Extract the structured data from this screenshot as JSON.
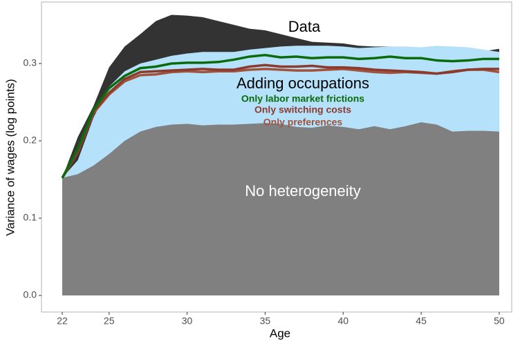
{
  "chart_data": {
    "type": "area",
    "xlabel": "Age",
    "ylabel": "Variance of wages (log points)",
    "x": [
      22,
      23,
      24,
      25,
      26,
      27,
      28,
      29,
      30,
      31,
      32,
      33,
      34,
      35,
      36,
      37,
      38,
      39,
      40,
      41,
      42,
      43,
      44,
      45,
      46,
      47,
      48,
      49,
      50
    ],
    "xlim": [
      20.67,
      50.8
    ],
    "ylim": [
      -0.0214,
      0.3795
    ],
    "xticks": [
      22,
      25,
      30,
      35,
      40,
      45,
      50
    ],
    "yticks": [
      {
        "value": 0,
        "label": "0.0"
      },
      0.1,
      0.2,
      0.3
    ],
    "series": [
      {
        "name": "Data",
        "kind": "area",
        "color": "#333333",
        "label_color": "#000000",
        "values": [
          0.152,
          0.205,
          0.245,
          0.295,
          0.322,
          0.338,
          0.355,
          0.363,
          0.362,
          0.36,
          0.355,
          0.35,
          0.345,
          0.343,
          0.338,
          0.333,
          0.328,
          0.327,
          0.326,
          0.323,
          0.322,
          0.322,
          0.321,
          0.321,
          0.32,
          0.319,
          0.318,
          0.316,
          0.319
        ]
      },
      {
        "name": "Adding occupations",
        "kind": "area",
        "color": "#b5e1fb",
        "label_color": "#000000",
        "values": [
          0.152,
          0.175,
          0.23,
          0.27,
          0.29,
          0.3,
          0.305,
          0.31,
          0.313,
          0.315,
          0.315,
          0.315,
          0.318,
          0.32,
          0.322,
          0.323,
          0.323,
          0.323,
          0.322,
          0.32,
          0.321,
          0.322,
          0.322,
          0.321,
          0.323,
          0.322,
          0.321,
          0.318,
          0.315
        ]
      },
      {
        "name": "No heterogeneity",
        "kind": "area",
        "color": "#808080",
        "label_color": "#ffffff",
        "values": [
          0.152,
          0.157,
          0.168,
          0.183,
          0.2,
          0.212,
          0.218,
          0.221,
          0.222,
          0.22,
          0.221,
          0.221,
          0.222,
          0.223,
          0.222,
          0.218,
          0.217,
          0.22,
          0.218,
          0.215,
          0.219,
          0.215,
          0.219,
          0.224,
          0.221,
          0.212,
          0.213,
          0.213,
          0.212
        ]
      },
      {
        "name": "Only preferences",
        "kind": "line",
        "color": "#a0523a",
        "label_color": "#a0523a",
        "values": [
          0.152,
          0.185,
          0.236,
          0.26,
          0.277,
          0.285,
          0.286,
          0.289,
          0.29,
          0.289,
          0.29,
          0.29,
          0.292,
          0.293,
          0.292,
          0.291,
          0.291,
          0.292,
          0.293,
          0.291,
          0.289,
          0.288,
          0.289,
          0.288,
          0.287,
          0.29,
          0.292,
          0.292,
          0.289
        ]
      },
      {
        "name": "Only switching costs",
        "kind": "line",
        "color": "#8b3a2e",
        "label_color": "#8b3a2e",
        "values": [
          0.152,
          0.185,
          0.238,
          0.262,
          0.28,
          0.289,
          0.29,
          0.291,
          0.292,
          0.293,
          0.292,
          0.292,
          0.296,
          0.298,
          0.296,
          0.296,
          0.297,
          0.295,
          0.295,
          0.294,
          0.292,
          0.291,
          0.29,
          0.289,
          0.287,
          0.289,
          0.292,
          0.293,
          0.293
        ]
      },
      {
        "name": "Only labor market frictions",
        "kind": "line",
        "color": "#0b6b0b",
        "label_color": "#0b6b0b",
        "values": [
          0.152,
          0.19,
          0.24,
          0.268,
          0.284,
          0.294,
          0.296,
          0.3,
          0.301,
          0.301,
          0.302,
          0.305,
          0.309,
          0.311,
          0.308,
          0.309,
          0.307,
          0.308,
          0.308,
          0.306,
          0.307,
          0.309,
          0.307,
          0.307,
          0.304,
          0.303,
          0.304,
          0.306,
          0.306
        ]
      }
    ]
  }
}
